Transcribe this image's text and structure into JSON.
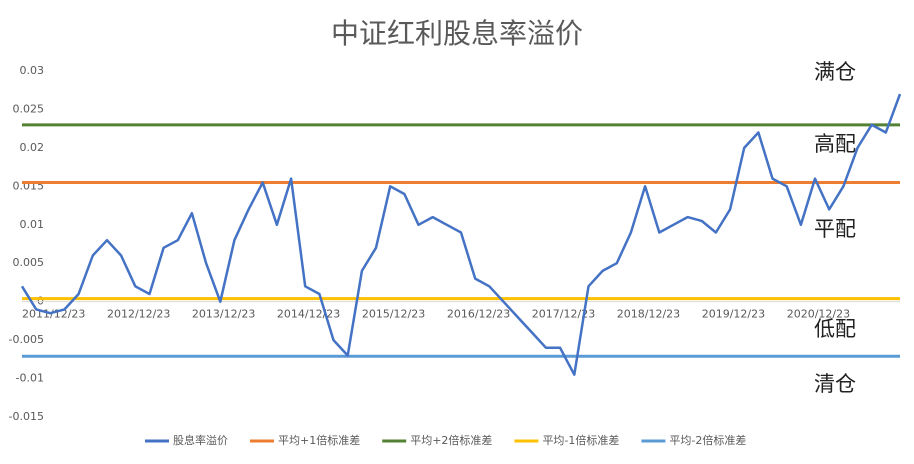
{
  "chart_data": {
    "type": "line",
    "title": "中证红利股息率溢价",
    "categories": [
      "2011/12/23",
      null,
      null,
      null,
      null,
      null,
      "2012/12/23",
      null,
      null,
      null,
      null,
      null,
      "2013/12/23",
      null,
      null,
      null,
      null,
      null,
      "2014/12/23",
      null,
      null,
      null,
      null,
      null,
      "2015/12/23",
      null,
      null,
      null,
      null,
      null,
      "2016/12/23",
      null,
      null,
      null,
      null,
      null,
      "2017/12/23",
      null,
      null,
      null,
      null,
      null,
      "2018/12/23",
      null,
      null,
      null,
      null,
      null,
      "2019/12/23",
      null,
      null,
      null,
      null,
      null,
      "2020/12/23",
      null,
      null,
      null,
      null,
      null,
      null,
      null,
      null
    ],
    "series": [
      {
        "name": "股息率溢价",
        "color": "#4472c4",
        "values": [
          0.002,
          -0.001,
          -0.0015,
          -0.001,
          0.001,
          0.006,
          0.008,
          0.006,
          0.002,
          0.001,
          0.007,
          0.008,
          0.0115,
          0.005,
          0.0,
          0.008,
          0.012,
          0.0155,
          0.01,
          0.016,
          0.002,
          0.001,
          -0.005,
          -0.007,
          0.004,
          0.007,
          0.015,
          0.014,
          0.01,
          0.011,
          0.01,
          0.009,
          0.003,
          0.002,
          0.0,
          -0.002,
          -0.004,
          -0.006,
          -0.006,
          -0.0095,
          0.002,
          0.004,
          0.005,
          0.009,
          0.015,
          0.009,
          0.01,
          0.011,
          0.0105,
          0.009,
          0.012,
          0.02,
          0.022,
          0.016,
          0.015,
          0.01,
          0.016,
          0.012,
          0.015,
          0.02,
          0.023,
          0.022,
          0.027
        ]
      }
    ],
    "reference_lines": [
      {
        "name": "平均+1倍标准差",
        "color": "#ed7d31",
        "value": 0.0155
      },
      {
        "name": "平均+2倍标准差",
        "color": "#548235",
        "value": 0.023
      },
      {
        "name": "平均-1倍标准差",
        "color": "#ffc000",
        "value": 0.0004
      },
      {
        "name": "平均-2倍标准差",
        "color": "#5b9bd5",
        "value": -0.0071
      }
    ],
    "annotations": [
      "满仓",
      "高配",
      "平配",
      "低配",
      "清仓"
    ],
    "ylim": [
      -0.015,
      0.03
    ],
    "yticks": [
      0.03,
      0.025,
      0.02,
      0.015,
      0.01,
      0.005,
      0,
      -0.005,
      -0.01,
      -0.015
    ],
    "grid": false,
    "legend": "bottom"
  }
}
